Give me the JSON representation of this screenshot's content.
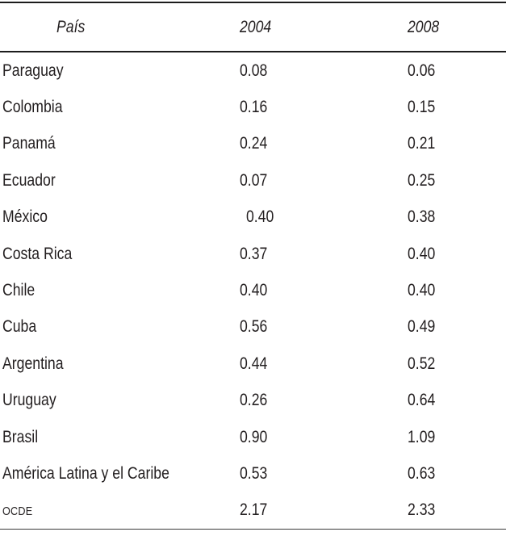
{
  "table": {
    "header": {
      "country": "País",
      "y2004": "2004",
      "y2008": "2008"
    },
    "rows": [
      {
        "country": "Paraguay",
        "v2004": "0.08",
        "v2008": "0.06"
      },
      {
        "country": "Colombia",
        "v2004": "0.16",
        "v2008": "0.15"
      },
      {
        "country": "Panamá",
        "v2004": "0.24",
        "v2008": "0.21"
      },
      {
        "country": "Ecuador",
        "v2004": "0.07",
        "v2008": "0.25"
      },
      {
        "country": "México",
        "v2004": "0.40",
        "v2008": "0.38"
      },
      {
        "country": "Costa Rica",
        "v2004": "0.37",
        "v2008": "0.40"
      },
      {
        "country": "Chile",
        "v2004": "0.40",
        "v2008": "0.40"
      },
      {
        "country": "Cuba",
        "v2004": "0.56",
        "v2008": "0.49"
      },
      {
        "country": "Argentina",
        "v2004": "0.44",
        "v2008": "0.52"
      },
      {
        "country": "Uruguay",
        "v2004": "0.26",
        "v2008": "0.64"
      },
      {
        "country": "Brasil",
        "v2004": "0.90",
        "v2008": "1.09"
      },
      {
        "country": "América Latina y el Caribe",
        "v2004": "0.53",
        "v2008": "0.63"
      },
      {
        "country": "OCDE",
        "v2004": "2.17",
        "v2008": "2.33"
      }
    ]
  },
  "colors": {
    "text": "#231f20",
    "rule": "#1c1c1c"
  }
}
